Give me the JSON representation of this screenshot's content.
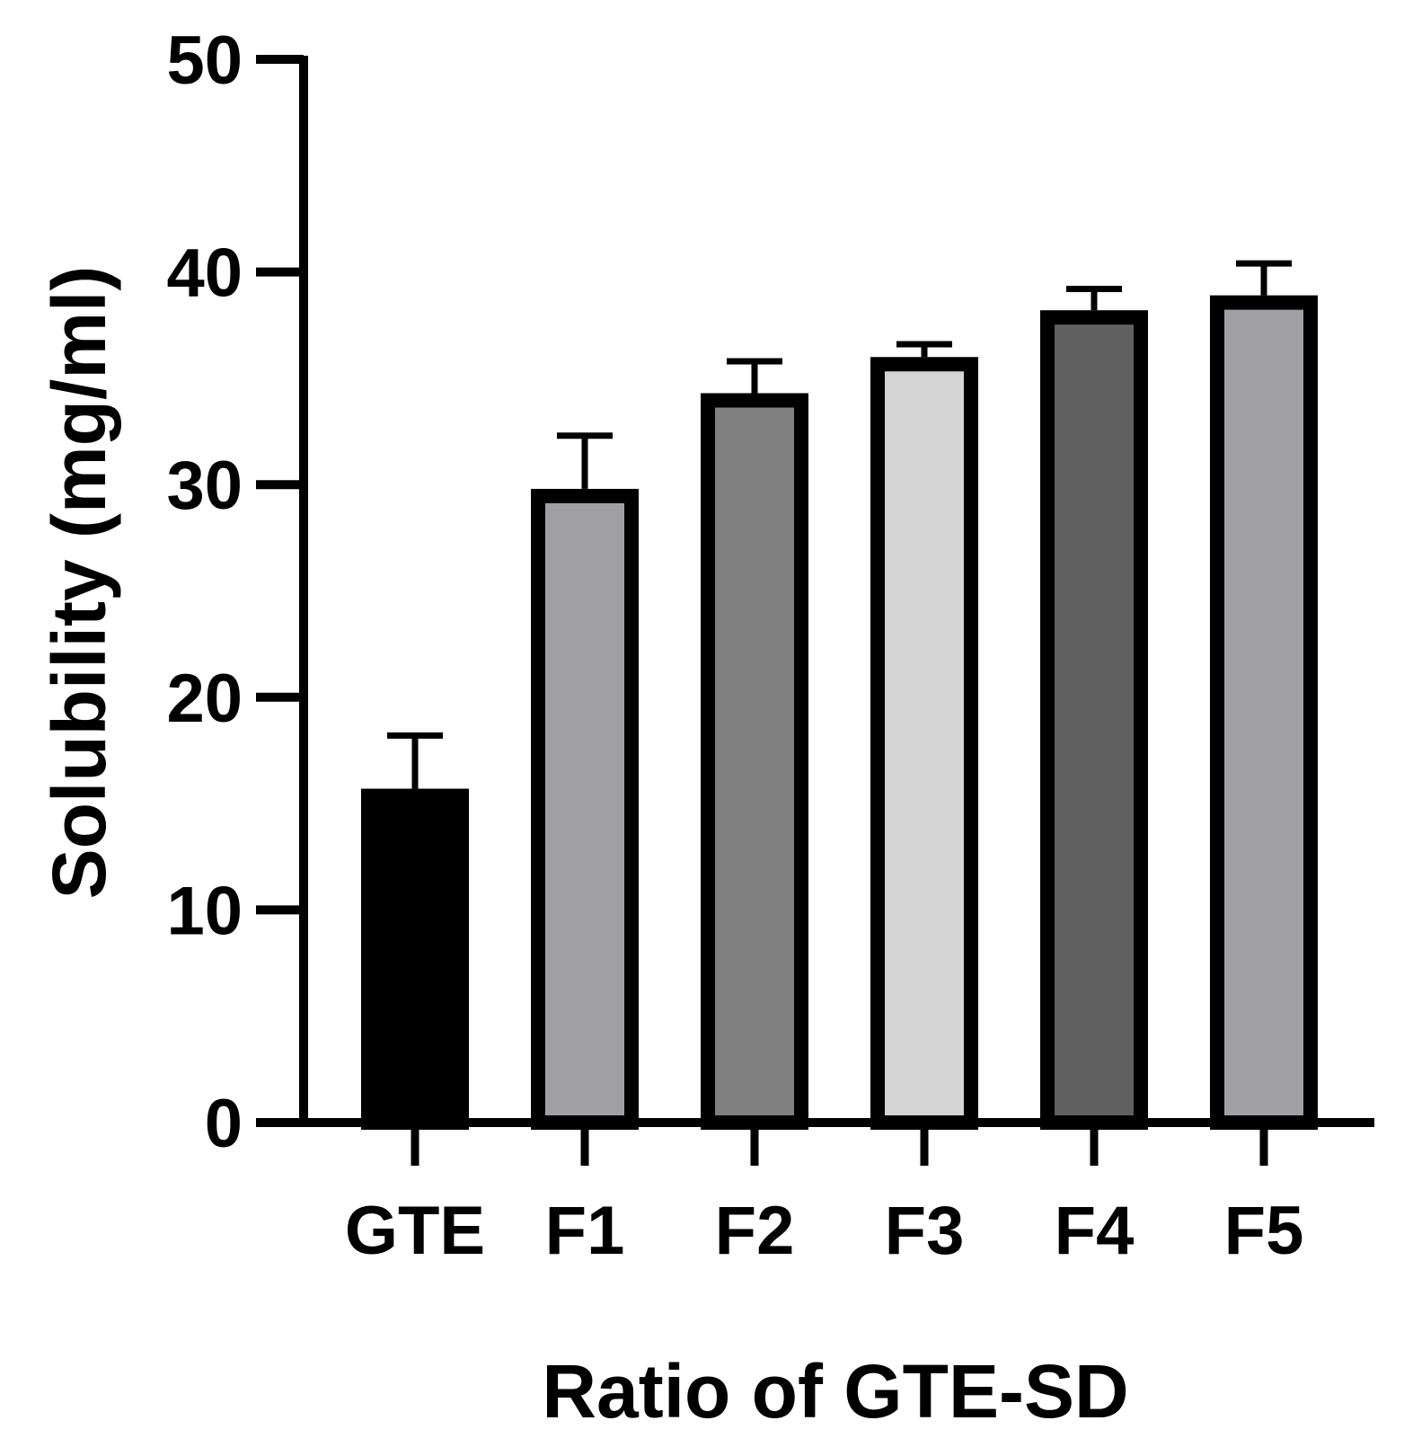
{
  "chart_data": {
    "type": "bar",
    "title": "",
    "xlabel": "Ratio of GTE-SD",
    "ylabel": "Solubility (mg/ml)",
    "ylim": [
      0,
      50
    ],
    "yticks": [
      0,
      10,
      20,
      30,
      40,
      50
    ],
    "grid": false,
    "categories": [
      "GTE",
      "F1",
      "F2",
      "F3",
      "F4",
      "F5"
    ],
    "values": [
      15.7,
      29.8,
      34.3,
      36.0,
      38.2,
      38.9
    ],
    "errors": [
      2.5,
      2.5,
      1.5,
      0.6,
      1.0,
      1.5
    ],
    "fills": [
      "#000000",
      "#a0a0a4",
      "#808080",
      "#d4d4d4",
      "#606060",
      "#a0a0a4"
    ],
    "outline_color": "#000000"
  }
}
